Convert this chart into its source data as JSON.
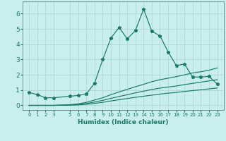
{
  "xlabel": "Humidex (Indice chaleur)",
  "background_color": "#c8eeed",
  "grid_color": "#b0d8d4",
  "line_color": "#1a7a6a",
  "x_ticks": [
    0,
    1,
    2,
    3,
    5,
    6,
    7,
    8,
    9,
    10,
    11,
    12,
    13,
    14,
    15,
    16,
    17,
    18,
    19,
    20,
    21,
    22,
    23
  ],
  "x_tick_labels": [
    "0",
    "1",
    "2",
    "3",
    "5",
    "6",
    "7",
    "8",
    "9",
    "10",
    "11",
    "12",
    "13",
    "14",
    "15",
    "16",
    "17",
    "18",
    "19",
    "20",
    "21",
    "22",
    "23"
  ],
  "series": [
    {
      "x": [
        0,
        1,
        2,
        3,
        5,
        6,
        7,
        8,
        9,
        10,
        11,
        12,
        13,
        14,
        15,
        16,
        17,
        18,
        19,
        20,
        21,
        22,
        23
      ],
      "y": [
        0.85,
        0.7,
        0.5,
        0.5,
        0.6,
        0.65,
        0.75,
        1.45,
        3.0,
        4.4,
        5.1,
        4.35,
        4.9,
        6.3,
        4.85,
        4.55,
        3.5,
        2.6,
        2.7,
        1.85,
        1.85,
        1.9,
        1.4
      ],
      "marker": true
    },
    {
      "x": [
        0,
        1,
        2,
        3,
        5,
        6,
        7,
        8,
        9,
        10,
        11,
        12,
        13,
        14,
        15,
        16,
        17,
        18,
        19,
        20,
        21,
        22,
        23
      ],
      "y": [
        0.0,
        0.0,
        0.0,
        0.0,
        0.05,
        0.1,
        0.2,
        0.35,
        0.5,
        0.7,
        0.88,
        1.05,
        1.22,
        1.38,
        1.55,
        1.68,
        1.78,
        1.88,
        2.0,
        2.12,
        2.2,
        2.3,
        2.45
      ],
      "marker": false
    },
    {
      "x": [
        0,
        1,
        2,
        3,
        5,
        6,
        7,
        8,
        9,
        10,
        11,
        12,
        13,
        14,
        15,
        16,
        17,
        18,
        19,
        20,
        21,
        22,
        23
      ],
      "y": [
        0.0,
        0.0,
        0.0,
        0.0,
        0.02,
        0.06,
        0.12,
        0.22,
        0.33,
        0.46,
        0.58,
        0.7,
        0.82,
        0.93,
        1.04,
        1.13,
        1.2,
        1.27,
        1.36,
        1.44,
        1.52,
        1.6,
        1.68
      ],
      "marker": false
    },
    {
      "x": [
        0,
        1,
        2,
        3,
        5,
        6,
        7,
        8,
        9,
        10,
        11,
        12,
        13,
        14,
        15,
        16,
        17,
        18,
        19,
        20,
        21,
        22,
        23
      ],
      "y": [
        0.0,
        0.0,
        0.0,
        0.0,
        0.01,
        0.03,
        0.07,
        0.13,
        0.2,
        0.29,
        0.37,
        0.45,
        0.53,
        0.6,
        0.67,
        0.74,
        0.8,
        0.85,
        0.91,
        0.97,
        1.02,
        1.08,
        1.14
      ],
      "marker": false
    }
  ],
  "ylim": [
    -0.3,
    6.8
  ],
  "yticks": [
    0,
    1,
    2,
    3,
    4,
    5,
    6
  ],
  "xlim": [
    -0.8,
    23.8
  ],
  "marker_style": "*",
  "markersize": 3.5,
  "linewidth": 0.85
}
